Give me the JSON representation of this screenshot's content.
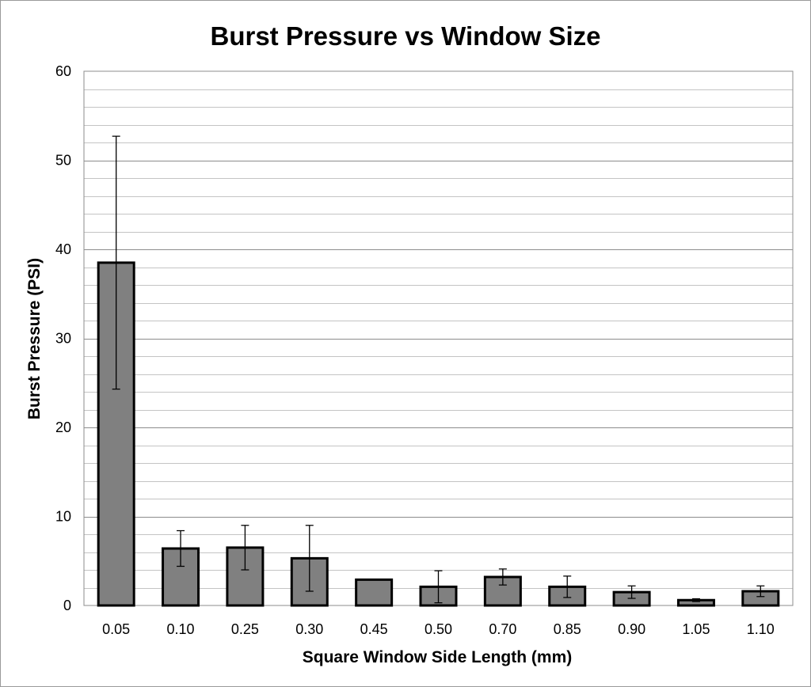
{
  "chart_data": {
    "type": "bar",
    "title": "Burst Pressure vs Window Size",
    "xlabel": "Square Window Side Length (mm)",
    "ylabel": "Burst Pressure (PSI)",
    "categories": [
      "0.05",
      "0.10",
      "0.25",
      "0.30",
      "0.45",
      "0.50",
      "0.70",
      "0.85",
      "0.90",
      "1.05",
      "1.10"
    ],
    "values": [
      38.5,
      6.4,
      6.5,
      5.3,
      2.9,
      2.1,
      3.2,
      2.1,
      1.5,
      0.6,
      1.6
    ],
    "error_bars": [
      14.2,
      2.0,
      2.5,
      3.7,
      0,
      1.8,
      0.9,
      1.2,
      0.7,
      0.15,
      0.6
    ],
    "ylim": [
      0,
      60
    ],
    "yticks": [
      0,
      10,
      20,
      30,
      40,
      50,
      60
    ],
    "minor_grid_step": 2,
    "grid": true,
    "legend": "none",
    "colors": {
      "bar_fill": "#808080",
      "bar_edge": "#000000"
    }
  }
}
